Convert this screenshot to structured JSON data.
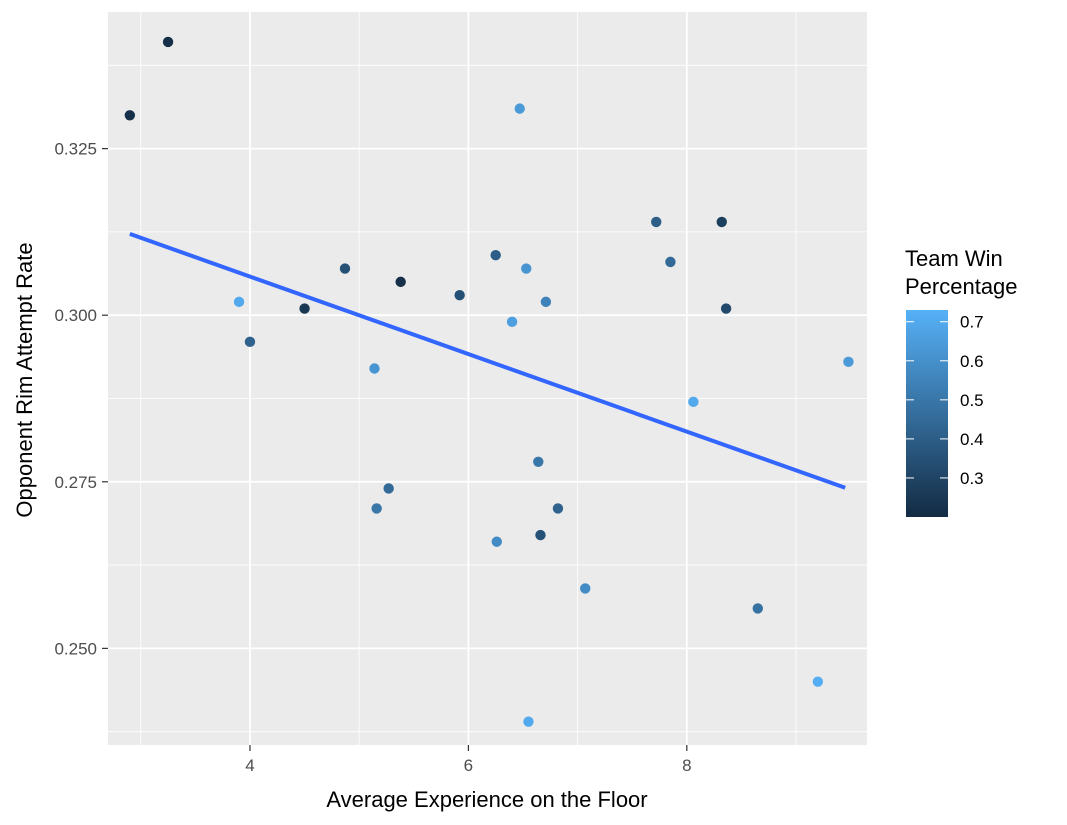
{
  "chart_data": {
    "type": "scatter",
    "xlabel": "Average Experience on the Floor",
    "ylabel": "Opponent Rim Attempt Rate",
    "xlim": [
      2.7,
      9.65
    ],
    "ylim": [
      0.2355,
      0.3455
    ],
    "x_ticks": [
      4,
      6,
      8
    ],
    "x_tick_labels": [
      "4",
      "6",
      "8"
    ],
    "y_ticks": [
      0.25,
      0.275,
      0.3,
      0.325
    ],
    "y_tick_labels": [
      "0.250",
      "0.275",
      "0.300",
      "0.325"
    ],
    "grid": true,
    "legend": {
      "position": "right",
      "title_lines": [
        "Team Win",
        "Percentage"
      ],
      "range": [
        0.2,
        0.73
      ],
      "ticks": [
        0.3,
        0.4,
        0.5,
        0.6,
        0.7
      ],
      "tick_labels": [
        "0.3",
        "0.4",
        "0.5",
        "0.6",
        "0.7"
      ],
      "color_low": "#132B43",
      "color_high": "#56B1F7"
    },
    "trend_line": {
      "x": [
        2.9,
        9.45
      ],
      "y": [
        0.3122,
        0.2741
      ],
      "color": "#3366FF"
    },
    "points": [
      {
        "x": 2.9,
        "y": 0.33,
        "win": 0.22
      },
      {
        "x": 3.25,
        "y": 0.341,
        "win": 0.22
      },
      {
        "x": 3.9,
        "y": 0.302,
        "win": 0.7
      },
      {
        "x": 4.0,
        "y": 0.296,
        "win": 0.42
      },
      {
        "x": 4.5,
        "y": 0.301,
        "win": 0.25
      },
      {
        "x": 4.87,
        "y": 0.307,
        "win": 0.35
      },
      {
        "x": 5.14,
        "y": 0.292,
        "win": 0.62
      },
      {
        "x": 5.16,
        "y": 0.271,
        "win": 0.5
      },
      {
        "x": 5.27,
        "y": 0.274,
        "win": 0.45
      },
      {
        "x": 5.38,
        "y": 0.305,
        "win": 0.22
      },
      {
        "x": 5.92,
        "y": 0.303,
        "win": 0.35
      },
      {
        "x": 6.25,
        "y": 0.309,
        "win": 0.4
      },
      {
        "x": 6.26,
        "y": 0.266,
        "win": 0.58
      },
      {
        "x": 6.4,
        "y": 0.299,
        "win": 0.66
      },
      {
        "x": 6.47,
        "y": 0.331,
        "win": 0.64
      },
      {
        "x": 6.53,
        "y": 0.307,
        "win": 0.62
      },
      {
        "x": 6.55,
        "y": 0.239,
        "win": 0.7
      },
      {
        "x": 6.64,
        "y": 0.278,
        "win": 0.5
      },
      {
        "x": 6.66,
        "y": 0.267,
        "win": 0.35
      },
      {
        "x": 6.71,
        "y": 0.302,
        "win": 0.55
      },
      {
        "x": 6.82,
        "y": 0.271,
        "win": 0.42
      },
      {
        "x": 7.07,
        "y": 0.259,
        "win": 0.58
      },
      {
        "x": 7.72,
        "y": 0.314,
        "win": 0.4
      },
      {
        "x": 7.85,
        "y": 0.308,
        "win": 0.45
      },
      {
        "x": 8.06,
        "y": 0.287,
        "win": 0.7
      },
      {
        "x": 8.32,
        "y": 0.314,
        "win": 0.28
      },
      {
        "x": 8.36,
        "y": 0.301,
        "win": 0.32
      },
      {
        "x": 8.65,
        "y": 0.256,
        "win": 0.48
      },
      {
        "x": 9.2,
        "y": 0.245,
        "win": 0.72
      },
      {
        "x": 9.48,
        "y": 0.293,
        "win": 0.64
      }
    ]
  }
}
